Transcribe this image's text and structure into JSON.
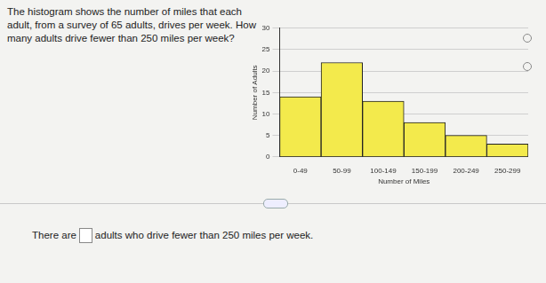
{
  "question": "The histogram shows the number of miles that each adult, from a survey of 65 adults, drives per week. How many adults drive fewer than 250 miles per week?",
  "answer_prefix": "There are",
  "answer_suffix": "adults who drive fewer than 250 miles per week.",
  "chart_data": {
    "type": "bar",
    "x_label": "Number of Miles",
    "y_label": "Number of Adults",
    "categories": [
      "0-49",
      "50-99",
      "100-149",
      "150-199",
      "200-249",
      "250-299"
    ],
    "values": [
      14,
      22,
      13,
      8,
      5,
      3
    ],
    "color": "#f3ea4c",
    "ylim": [
      0,
      30
    ],
    "yticks": [
      0,
      5,
      10,
      15,
      20,
      25,
      30
    ],
    "grid": true
  }
}
